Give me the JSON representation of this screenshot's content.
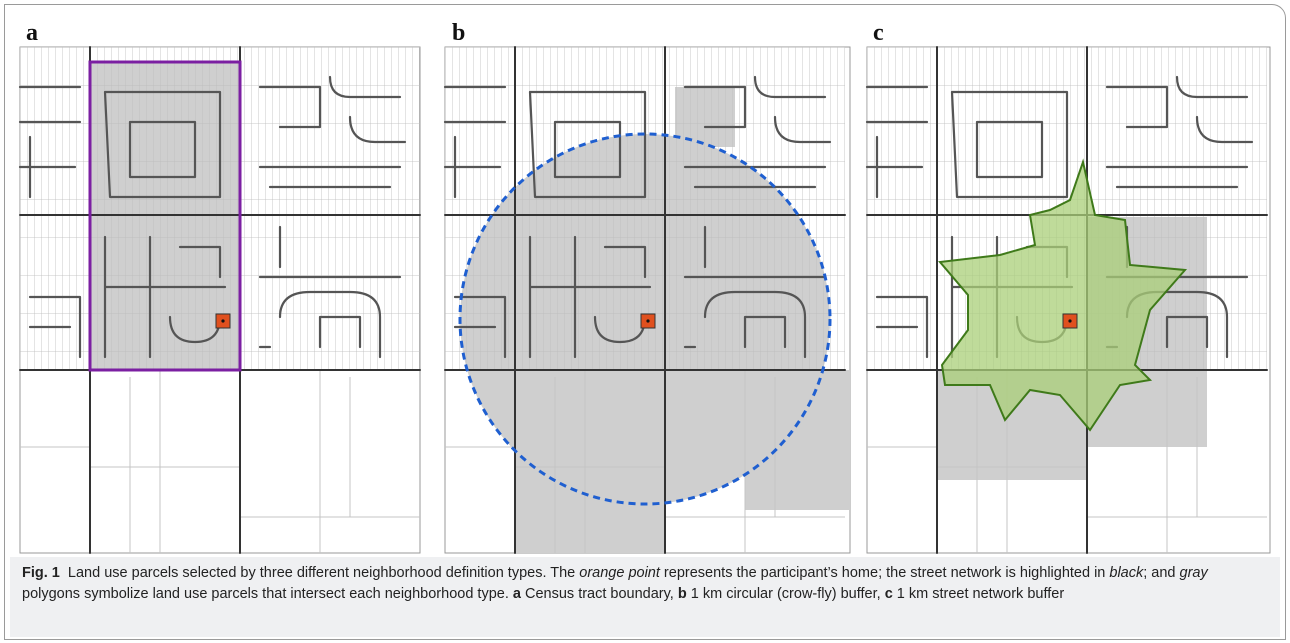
{
  "panels": [
    {
      "label": "a"
    },
    {
      "label": "b"
    },
    {
      "label": "c"
    }
  ],
  "caption": {
    "segments": [
      "Fig. 1",
      "  Land use parcels selected by three different neighborhood definition types. The ",
      "orange point",
      " represents the participant’s home; the street network is highlighted in ",
      "black",
      "; and ",
      "gray",
      " polygons symbolize land use parcels that intersect each neighborhood type. ",
      "a",
      " Census tract boundary, ",
      "b",
      " 1 km circular (crow-fly) buffer, ",
      "c",
      " 1 km street network buffer"
    ]
  }
}
